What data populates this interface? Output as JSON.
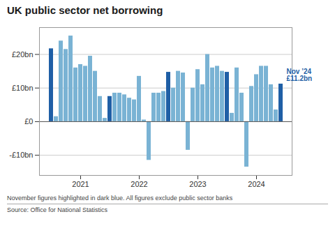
{
  "chart_data": {
    "type": "bar",
    "title": "UK public sector net borrowing",
    "subtitle": "November figures highlighted in dark blue. All figures exclude public sector banks",
    "source": "Source: Office for National Statistics",
    "annotation": "Nov ’24\n£11.2bn",
    "categories": [
      null,
      null,
      null,
      null,
      null,
      null,
      "2021",
      null,
      null,
      null,
      null,
      null,
      null,
      null,
      null,
      null,
      null,
      null,
      "2022",
      null,
      null,
      null,
      null,
      null,
      null,
      null,
      null,
      null,
      null,
      null,
      "2023",
      null,
      null,
      null,
      null,
      null,
      null,
      null,
      null,
      null,
      null,
      null,
      "2024",
      null,
      null,
      null,
      null,
      null
    ],
    "values": [
      21.7,
      1.5,
      24.0,
      21.5,
      25.5,
      16.0,
      17.0,
      16.5,
      19.5,
      15.0,
      7.5,
      1.0,
      7.5,
      8.5,
      8.5,
      8.0,
      7.0,
      6.5,
      13.5,
      0.5,
      -11.5,
      8.5,
      8.5,
      9.0,
      14.7,
      10.0,
      15.0,
      14.5,
      -8.5,
      10.0,
      15.5,
      11.0,
      20.0,
      16.0,
      16.5,
      15.0,
      14.7,
      2.5,
      16.0,
      8.5,
      -13.5,
      10.5,
      14.0,
      16.5,
      16.5,
      11.0,
      3.5,
      11.2
    ],
    "colors": [
      "#1f5fa6",
      "#7ab3d4",
      "#7ab3d4",
      "#7ab3d4",
      "#7ab3d4",
      "#7ab3d4",
      "#7ab3d4",
      "#7ab3d4",
      "#7ab3d4",
      "#7ab3d4",
      "#7ab3d4",
      "#7ab3d4",
      "#1f5fa6",
      "#7ab3d4",
      "#7ab3d4",
      "#7ab3d4",
      "#7ab3d4",
      "#7ab3d4",
      "#7ab3d4",
      "#7ab3d4",
      "#7ab3d4",
      "#7ab3d4",
      "#7ab3d4",
      "#7ab3d4",
      "#1f5fa6",
      "#7ab3d4",
      "#7ab3d4",
      "#7ab3d4",
      "#7ab3d4",
      "#7ab3d4",
      "#7ab3d4",
      "#7ab3d4",
      "#7ab3d4",
      "#7ab3d4",
      "#7ab3d4",
      "#7ab3d4",
      "#1f5fa6",
      "#7ab3d4",
      "#7ab3d4",
      "#7ab3d4",
      "#7ab3d4",
      "#7ab3d4",
      "#7ab3d4",
      "#7ab3d4",
      "#7ab3d4",
      "#7ab3d4",
      "#7ab3d4",
      "#1f5fa6"
    ],
    "ylim": [
      -16,
      28
    ],
    "yticks": [
      {
        "value": -10,
        "label": "-£10bn"
      },
      {
        "value": 0,
        "label": "£0"
      },
      {
        "value": 10,
        "label": "£10bn"
      },
      {
        "value": 20,
        "label": "£20bn"
      }
    ],
    "grid": true
  }
}
